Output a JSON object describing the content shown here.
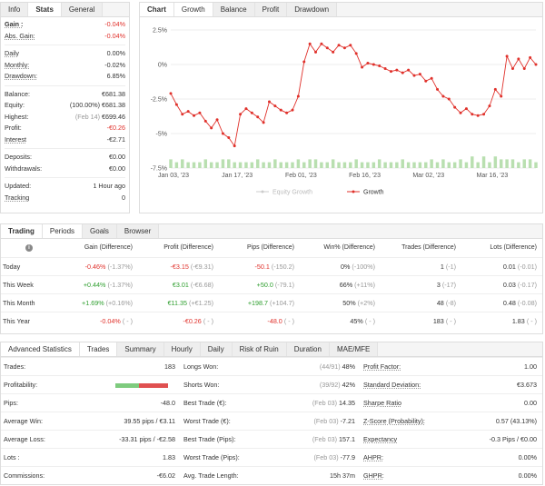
{
  "info_tabs": [
    {
      "label": "Info",
      "active": false
    },
    {
      "label": "Stats",
      "active": true
    },
    {
      "label": "General",
      "active": false
    }
  ],
  "info": {
    "gain_label": "Gain :",
    "gain_value": "-0.04%",
    "abs_gain_label": "Abs. Gain:",
    "abs_gain_value": "-0.04%",
    "daily_label": "Daily",
    "daily_value": "0.00%",
    "monthly_label": "Monthly:",
    "monthly_value": "-0.02%",
    "drawdown_label": "Drawdown:",
    "drawdown_value": "6.85%",
    "balance_label": "Balance:",
    "balance_value": "€681.38",
    "equity_label": "Equity:",
    "equity_pct": "(100.00%)",
    "equity_value": "€681.38",
    "highest_label": "Highest:",
    "highest_date": "(Feb 14)",
    "highest_value": "€699.46",
    "profit_label": "Profit:",
    "profit_value": "-€0.26",
    "interest_label": "Interest",
    "interest_value": "-€2.71",
    "deposits_label": "Deposits:",
    "deposits_value": "€0.00",
    "withdrawals_label": "Withdrawals:",
    "withdrawals_value": "€0.00",
    "updated_label": "Updated:",
    "updated_value": "1 Hour ago",
    "tracking_label": "Tracking",
    "tracking_value": "0"
  },
  "chart_tabs": [
    {
      "label": "Chart",
      "active": false
    },
    {
      "label": "Growth",
      "active": true
    },
    {
      "label": "Balance",
      "active": false
    },
    {
      "label": "Profit",
      "active": false
    },
    {
      "label": "Drawdown",
      "active": false
    }
  ],
  "chart_data": {
    "type": "line",
    "ylim": [
      -7.5,
      2.5
    ],
    "yticks": [
      "2.5%",
      "0%",
      "-2.5%",
      "-5%",
      "-7.5%"
    ],
    "xticks": [
      "Jan 03, '23",
      "Jan 17, '23",
      "Feb 01, '23",
      "Feb 16, '23",
      "Mar 02, '23",
      "Mar 16, '23"
    ],
    "xtick_index": [
      0,
      11,
      22,
      33,
      44,
      55
    ],
    "legend": [
      "Equity Growth",
      "Growth"
    ],
    "legend_placement": "bottom",
    "colors": {
      "growth": "#e0312b",
      "equity": "#cccccc",
      "bars": "#b9dfb0"
    },
    "series": [
      {
        "name": "Growth",
        "values": [
          -2.1,
          -2.9,
          -3.6,
          -3.4,
          -3.7,
          -3.5,
          -4.1,
          -4.6,
          -4.0,
          -5.0,
          -5.3,
          -5.9,
          -3.6,
          -3.2,
          -3.5,
          -3.8,
          -4.2,
          -2.7,
          -3.0,
          -3.3,
          -3.5,
          -3.3,
          -2.3,
          0.2,
          1.5,
          0.9,
          1.5,
          1.2,
          0.9,
          1.4,
          1.2,
          1.4,
          0.8,
          -0.2,
          0.1,
          0.0,
          -0.1,
          -0.3,
          -0.5,
          -0.4,
          -0.6,
          -0.4,
          -0.8,
          -0.7,
          -1.2,
          -1.0,
          -1.8,
          -2.3,
          -2.5,
          -3.1,
          -3.5,
          -3.2,
          -3.6,
          -3.7,
          -3.6,
          -3.0,
          -1.8,
          -2.3,
          0.6,
          -0.3,
          0.4,
          -0.3,
          0.5,
          0.0
        ]
      },
      {
        "name": "Equity Growth",
        "values": []
      }
    ],
    "bars": [
      3,
      2,
      3,
      2,
      2,
      2,
      3,
      2,
      2,
      3,
      3,
      2,
      2,
      2,
      2,
      3,
      2,
      2,
      3,
      2,
      2,
      2,
      3,
      2,
      3,
      3,
      2,
      2,
      3,
      2,
      2,
      2,
      3,
      2,
      2,
      2,
      3,
      2,
      2,
      2,
      3,
      2,
      2,
      2,
      2,
      3,
      2,
      3,
      2,
      2,
      3,
      2,
      4,
      2,
      4,
      2,
      4,
      3,
      3,
      3,
      2,
      3,
      3,
      2
    ]
  },
  "trading_tabs": [
    {
      "label": "Trading",
      "active": false
    },
    {
      "label": "Periods",
      "active": true
    },
    {
      "label": "Goals",
      "active": false
    },
    {
      "label": "Browser",
      "active": false
    }
  ],
  "periods": {
    "headers": [
      "Gain (Difference)",
      "Profit (Difference)",
      "Pips (Difference)",
      "Win% (Difference)",
      "Trades (Difference)",
      "Lots (Difference)"
    ],
    "rows": [
      {
        "label": "Today",
        "gain": "-0.46%",
        "gain_d": "(-1.37%)",
        "gain_c": "red",
        "profit": "-€3.15",
        "profit_d": "(-€9.31)",
        "profit_c": "red",
        "pips": "-50.1",
        "pips_d": "(-150.2)",
        "pips_c": "red",
        "win": "0%",
        "win_d": "(-100%)",
        "trades": "1",
        "trades_d": "(-1)",
        "lots": "0.01",
        "lots_d": "(-0.01)"
      },
      {
        "label": "This Week",
        "gain": "+0.44%",
        "gain_d": "(-1.37%)",
        "gain_c": "green",
        "profit": "€3.01",
        "profit_d": "(-€6.68)",
        "profit_c": "green",
        "pips": "+50.0",
        "pips_d": "(-79.1)",
        "pips_c": "green",
        "win": "66%",
        "win_d": "(+11%)",
        "trades": "3",
        "trades_d": "(-17)",
        "lots": "0.03",
        "lots_d": "(-0.17)"
      },
      {
        "label": "This Month",
        "gain": "+1.69%",
        "gain_d": "(+0.16%)",
        "gain_c": "green",
        "profit": "€11.35",
        "profit_d": "(+€1.25)",
        "profit_c": "green",
        "pips": "+198.7",
        "pips_d": "(+104.7)",
        "pips_c": "green",
        "win": "50%",
        "win_d": "(+2%)",
        "trades": "48",
        "trades_d": "(-8)",
        "lots": "0.48",
        "lots_d": "(-0.08)"
      },
      {
        "label": "This Year",
        "gain": "-0.04%",
        "gain_d": "( - )",
        "gain_c": "red",
        "profit": "-€0.26",
        "profit_d": "( - )",
        "profit_c": "red",
        "pips": "-48.0",
        "pips_d": "( - )",
        "pips_c": "red",
        "win": "45%",
        "win_d": "( - )",
        "trades": "183",
        "trades_d": "( - )",
        "lots": "1.83",
        "lots_d": "( - )"
      }
    ]
  },
  "adv_tabs": [
    {
      "label": "Advanced Statistics",
      "active": false
    },
    {
      "label": "Trades",
      "active": true
    },
    {
      "label": "Summary",
      "active": false
    },
    {
      "label": "Hourly",
      "active": false
    },
    {
      "label": "Daily",
      "active": false
    },
    {
      "label": "Risk of Ruin",
      "active": false
    },
    {
      "label": "Duration",
      "active": false
    },
    {
      "label": "MAE/MFE",
      "active": false
    }
  ],
  "adv": {
    "rows": [
      {
        "l1": "Trades:",
        "v1": "183",
        "l2": "Longs Won:",
        "g2": "(44/91)",
        "v2": "48%",
        "l3": "Profit Factor:",
        "v3": "1.00"
      },
      {
        "l1": "Profitability:",
        "v1": "",
        "l2": "Shorts Won:",
        "g2": "(39/92)",
        "v2": "42%",
        "l3": "Standard Deviation:",
        "v3": "€3.673"
      },
      {
        "l1": "Pips:",
        "v1": "-48.0",
        "l2": "Best Trade (€):",
        "g2": "(Feb 03)",
        "v2": "14.35",
        "l3": "Sharpe Ratio",
        "v3": "0.00"
      },
      {
        "l1": "Average Win:",
        "v1": "39.55 pips / €3.11",
        "l2": "Worst Trade (€):",
        "g2": "(Feb 03)",
        "v2": "-7.21",
        "l3": "Z-Score (Probability):",
        "v3": "0.57 (43.13%)"
      },
      {
        "l1": "Average Loss:",
        "v1": "-33.31 pips / -€2.58",
        "l2": "Best Trade (Pips):",
        "g2": "(Feb 03)",
        "v2": "157.1",
        "l3": "Expectancy",
        "v3": "-0.3 Pips / €0.00"
      },
      {
        "l1": "Lots :",
        "v1": "1.83",
        "l2": "Worst Trade (Pips):",
        "g2": "(Feb 03)",
        "v2": "-77.9",
        "l3": "AHPR:",
        "v3": "0.00%"
      },
      {
        "l1": "Commissions:",
        "v1": "-€6.02",
        "l2": "Avg. Trade Length:",
        "g2": "",
        "v2": "15h 37m",
        "l3": "GHPR:",
        "v3": "0.00%"
      }
    ],
    "profitability_win_fraction": 0.45
  }
}
